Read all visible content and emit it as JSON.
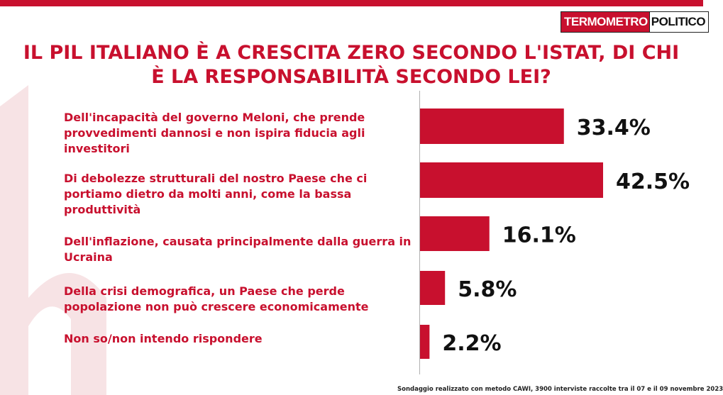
{
  "brand": {
    "logo_part1": "TERMOMETRO",
    "logo_part2": "POLITICO",
    "accent": "#c8102e"
  },
  "title": "IL PIL ITALIANO È A CRESCITA ZERO SECONDO L'ISTAT, DI CHI È LA RESPONSABILITÀ SECONDO LEI?",
  "footnote": "Sondaggio realizzato con metodo CAWI, 3900 interviste raccolte tra il 07 e il 09 novembre 2023",
  "chart_data": {
    "type": "bar",
    "orientation": "horizontal",
    "categories": [
      "Dell'incapacità  del governo Meloni, che prende provvedimenti dannosi e non ispira fiducia agli investitori",
      "Di debolezze strutturali del nostro Paese che ci portiamo dietro da molti anni, come la bassa produttività",
      "Dell'inflazione, causata principalmente dalla guerra in Ucraina",
      "Della crisi demografica, un Paese che perde popolazione non può crescere economicamente",
      "Non so/non intendo rispondere"
    ],
    "values": [
      33.4,
      42.5,
      16.1,
      5.8,
      2.2
    ],
    "value_labels": [
      "33.4%",
      "42.5%",
      "16.1%",
      "5.8%",
      "2.2%"
    ],
    "unit": "%",
    "bar_color": "#c8102e",
    "grid": false,
    "legend": "none"
  }
}
